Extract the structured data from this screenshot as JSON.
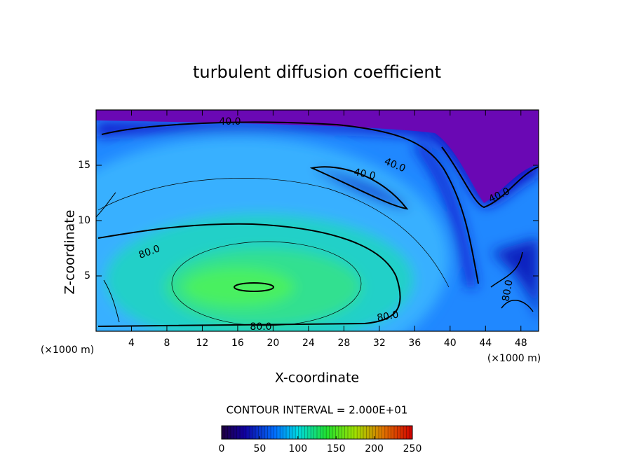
{
  "chart_data": {
    "type": "contour",
    "title": "turbulent diffusion coefficient",
    "x_label": "X-coordinate",
    "y_label": "Z-coordinate",
    "x_unit": "(×1000 m)",
    "y_unit": "(×1000 m)",
    "xlim": [
      0,
      50
    ],
    "xticks": [
      4,
      8,
      12,
      16,
      20,
      24,
      28,
      32,
      36,
      40,
      44,
      48
    ],
    "ylim": [
      0,
      20
    ],
    "yticks": [
      5,
      10,
      15
    ],
    "contour_labels": [
      {
        "value": 40,
        "label": "40.0"
      },
      {
        "value": 40,
        "label": "40.0"
      },
      {
        "value": 40,
        "label": "40.0"
      },
      {
        "value": 40,
        "label": "40.0"
      },
      {
        "value": 80,
        "label": "80.0"
      },
      {
        "value": 80,
        "label": "80.0"
      },
      {
        "value": 80,
        "label": "80.0"
      },
      {
        "value": 80,
        "label": "80.0"
      }
    ],
    "contour_interval_label": "CONTOUR INTERVAL = 2.000E+01",
    "colorbar": {
      "lim": [
        0,
        250
      ],
      "ticks": [
        0,
        50,
        100,
        150,
        200,
        250
      ]
    }
  }
}
